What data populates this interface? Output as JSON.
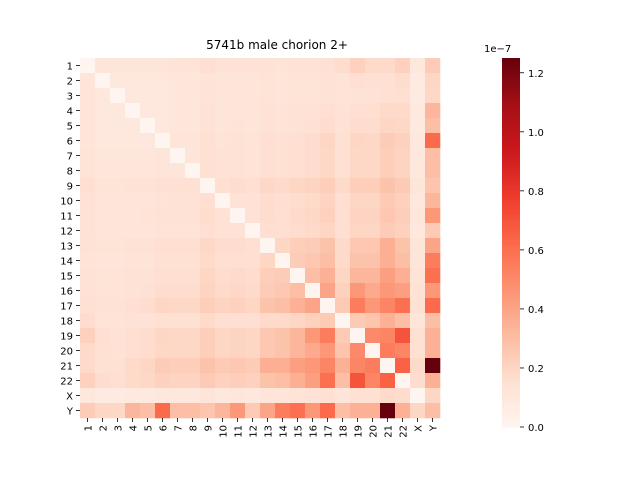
{
  "chart_data": {
    "type": "heatmap",
    "title": "5741b male chorion 2+",
    "rows": [
      "1",
      "2",
      "3",
      "4",
      "5",
      "6",
      "7",
      "8",
      "9",
      "10",
      "11",
      "12",
      "13",
      "14",
      "15",
      "16",
      "17",
      "18",
      "19",
      "20",
      "21",
      "22",
      "X",
      "Y"
    ],
    "cols": [
      "1",
      "2",
      "3",
      "4",
      "5",
      "6",
      "7",
      "8",
      "9",
      "10",
      "11",
      "12",
      "13",
      "14",
      "15",
      "16",
      "17",
      "18",
      "19",
      "20",
      "21",
      "22",
      "X",
      "Y"
    ],
    "values_scale_note": "1e-7",
    "values": [
      [
        0.0,
        0.12,
        0.12,
        0.12,
        0.12,
        0.12,
        0.13,
        0.13,
        0.16,
        0.14,
        0.14,
        0.14,
        0.14,
        0.13,
        0.14,
        0.14,
        0.15,
        0.17,
        0.22,
        0.18,
        0.18,
        0.22,
        0.1,
        0.24
      ],
      [
        0.12,
        0.0,
        0.1,
        0.1,
        0.1,
        0.1,
        0.11,
        0.11,
        0.13,
        0.12,
        0.12,
        0.12,
        0.13,
        0.12,
        0.13,
        0.13,
        0.14,
        0.13,
        0.16,
        0.15,
        0.15,
        0.17,
        0.08,
        0.2
      ],
      [
        0.12,
        0.1,
        0.0,
        0.1,
        0.1,
        0.1,
        0.11,
        0.11,
        0.13,
        0.12,
        0.12,
        0.12,
        0.13,
        0.12,
        0.13,
        0.13,
        0.14,
        0.13,
        0.14,
        0.14,
        0.15,
        0.16,
        0.08,
        0.19
      ],
      [
        0.12,
        0.1,
        0.1,
        0.0,
        0.1,
        0.1,
        0.11,
        0.11,
        0.14,
        0.12,
        0.12,
        0.12,
        0.14,
        0.13,
        0.14,
        0.14,
        0.16,
        0.14,
        0.16,
        0.16,
        0.18,
        0.18,
        0.09,
        0.33
      ],
      [
        0.12,
        0.1,
        0.1,
        0.1,
        0.0,
        0.1,
        0.11,
        0.11,
        0.14,
        0.12,
        0.13,
        0.12,
        0.14,
        0.13,
        0.14,
        0.15,
        0.17,
        0.14,
        0.17,
        0.17,
        0.2,
        0.19,
        0.09,
        0.3
      ],
      [
        0.12,
        0.1,
        0.1,
        0.1,
        0.1,
        0.0,
        0.12,
        0.12,
        0.15,
        0.13,
        0.14,
        0.13,
        0.16,
        0.15,
        0.16,
        0.17,
        0.2,
        0.15,
        0.2,
        0.19,
        0.24,
        0.22,
        0.1,
        0.62
      ],
      [
        0.13,
        0.11,
        0.11,
        0.11,
        0.11,
        0.12,
        0.0,
        0.12,
        0.15,
        0.14,
        0.14,
        0.13,
        0.16,
        0.15,
        0.16,
        0.17,
        0.19,
        0.15,
        0.19,
        0.19,
        0.23,
        0.21,
        0.1,
        0.3
      ],
      [
        0.13,
        0.11,
        0.11,
        0.11,
        0.11,
        0.12,
        0.12,
        0.0,
        0.15,
        0.14,
        0.14,
        0.13,
        0.16,
        0.15,
        0.16,
        0.17,
        0.19,
        0.15,
        0.19,
        0.19,
        0.23,
        0.21,
        0.1,
        0.3
      ],
      [
        0.16,
        0.13,
        0.13,
        0.14,
        0.14,
        0.15,
        0.15,
        0.15,
        0.0,
        0.16,
        0.17,
        0.16,
        0.19,
        0.18,
        0.2,
        0.21,
        0.23,
        0.18,
        0.23,
        0.23,
        0.28,
        0.25,
        0.12,
        0.27
      ],
      [
        0.14,
        0.12,
        0.12,
        0.12,
        0.12,
        0.13,
        0.14,
        0.14,
        0.16,
        0.0,
        0.14,
        0.14,
        0.17,
        0.16,
        0.17,
        0.18,
        0.21,
        0.16,
        0.2,
        0.2,
        0.25,
        0.22,
        0.1,
        0.33
      ],
      [
        0.14,
        0.12,
        0.12,
        0.12,
        0.13,
        0.14,
        0.14,
        0.14,
        0.17,
        0.14,
        0.0,
        0.14,
        0.17,
        0.16,
        0.18,
        0.19,
        0.22,
        0.16,
        0.21,
        0.21,
        0.26,
        0.23,
        0.11,
        0.45
      ],
      [
        0.14,
        0.12,
        0.12,
        0.12,
        0.12,
        0.13,
        0.13,
        0.13,
        0.16,
        0.14,
        0.14,
        0.0,
        0.16,
        0.16,
        0.17,
        0.18,
        0.2,
        0.16,
        0.2,
        0.2,
        0.24,
        0.22,
        0.1,
        0.25
      ],
      [
        0.14,
        0.13,
        0.13,
        0.14,
        0.14,
        0.16,
        0.16,
        0.16,
        0.19,
        0.17,
        0.17,
        0.16,
        0.0,
        0.2,
        0.23,
        0.24,
        0.28,
        0.18,
        0.26,
        0.26,
        0.36,
        0.28,
        0.12,
        0.4
      ],
      [
        0.13,
        0.12,
        0.12,
        0.13,
        0.13,
        0.15,
        0.15,
        0.15,
        0.18,
        0.16,
        0.16,
        0.16,
        0.2,
        0.0,
        0.24,
        0.26,
        0.3,
        0.18,
        0.28,
        0.28,
        0.36,
        0.3,
        0.12,
        0.55
      ],
      [
        0.14,
        0.13,
        0.13,
        0.14,
        0.14,
        0.16,
        0.16,
        0.16,
        0.2,
        0.17,
        0.18,
        0.17,
        0.23,
        0.24,
        0.0,
        0.3,
        0.35,
        0.2,
        0.33,
        0.33,
        0.42,
        0.36,
        0.13,
        0.6
      ],
      [
        0.14,
        0.13,
        0.13,
        0.14,
        0.15,
        0.17,
        0.17,
        0.17,
        0.21,
        0.18,
        0.19,
        0.18,
        0.24,
        0.26,
        0.3,
        0.0,
        0.4,
        0.22,
        0.45,
        0.38,
        0.45,
        0.42,
        0.14,
        0.45
      ],
      [
        0.15,
        0.14,
        0.14,
        0.16,
        0.17,
        0.2,
        0.19,
        0.19,
        0.23,
        0.21,
        0.22,
        0.2,
        0.28,
        0.3,
        0.35,
        0.4,
        0.0,
        0.25,
        0.55,
        0.45,
        0.52,
        0.6,
        0.15,
        0.62
      ],
      [
        0.17,
        0.13,
        0.13,
        0.14,
        0.14,
        0.15,
        0.15,
        0.15,
        0.18,
        0.16,
        0.16,
        0.16,
        0.18,
        0.18,
        0.2,
        0.22,
        0.25,
        0.0,
        0.25,
        0.27,
        0.35,
        0.3,
        0.12,
        0.3
      ],
      [
        0.22,
        0.16,
        0.14,
        0.16,
        0.17,
        0.2,
        0.19,
        0.19,
        0.23,
        0.2,
        0.21,
        0.2,
        0.26,
        0.28,
        0.33,
        0.45,
        0.55,
        0.25,
        0.0,
        0.5,
        0.52,
        0.7,
        0.15,
        0.35
      ],
      [
        0.18,
        0.15,
        0.14,
        0.16,
        0.17,
        0.19,
        0.19,
        0.19,
        0.23,
        0.2,
        0.21,
        0.2,
        0.26,
        0.28,
        0.33,
        0.38,
        0.45,
        0.27,
        0.5,
        0.0,
        0.55,
        0.52,
        0.15,
        0.35
      ],
      [
        0.18,
        0.15,
        0.15,
        0.18,
        0.2,
        0.24,
        0.23,
        0.23,
        0.28,
        0.25,
        0.26,
        0.24,
        0.36,
        0.36,
        0.42,
        0.45,
        0.52,
        0.35,
        0.52,
        0.55,
        0.0,
        0.65,
        0.18,
        1.25
      ],
      [
        0.22,
        0.17,
        0.16,
        0.18,
        0.19,
        0.22,
        0.21,
        0.21,
        0.25,
        0.22,
        0.23,
        0.22,
        0.28,
        0.3,
        0.36,
        0.42,
        0.6,
        0.3,
        0.7,
        0.52,
        0.65,
        0.0,
        0.17,
        0.35
      ],
      [
        0.1,
        0.08,
        0.08,
        0.09,
        0.09,
        0.1,
        0.1,
        0.1,
        0.12,
        0.1,
        0.11,
        0.1,
        0.12,
        0.12,
        0.13,
        0.14,
        0.15,
        0.12,
        0.15,
        0.15,
        0.18,
        0.17,
        0.0,
        0.2
      ],
      [
        0.24,
        0.2,
        0.19,
        0.33,
        0.3,
        0.62,
        0.3,
        0.3,
        0.27,
        0.33,
        0.45,
        0.25,
        0.4,
        0.55,
        0.6,
        0.45,
        0.62,
        0.3,
        0.35,
        0.35,
        1.25,
        0.35,
        0.2,
        0.3
      ]
    ],
    "colorbar": {
      "colormap": "Reds",
      "vmin": 0.0,
      "vmax": 1.25,
      "ticks": [
        "0.0",
        "0.2",
        "0.4",
        "0.6",
        "0.8",
        "1.0",
        "1.2"
      ],
      "multiplier_label": "1e−7"
    }
  }
}
